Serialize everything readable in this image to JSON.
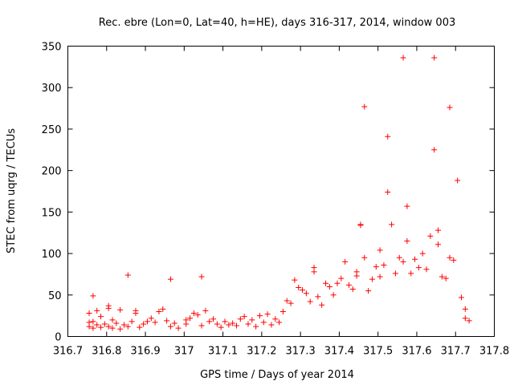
{
  "chart_data": {
    "type": "scatter",
    "title": "Rec. ebre (Lon=0, Lat=40, h=HE), days 316-317, 2014, window 003",
    "xlabel": "GPS time / Days of year 2014",
    "ylabel": "STEC from uqrg / TECUs",
    "xlim": [
      316.7,
      317.8
    ],
    "ylim": [
      0,
      350
    ],
    "xticks": [
      316.7,
      316.8,
      316.9,
      317.0,
      317.1,
      317.2,
      317.3,
      317.4,
      317.5,
      317.6,
      317.7,
      317.8
    ],
    "xtick_labels": [
      "316.7",
      "316.8",
      "316.9",
      "317",
      "317.1",
      "317.2",
      "317.3",
      "317.4",
      "317.5",
      "317.6",
      "317.7",
      "317.8"
    ],
    "yticks": [
      0,
      50,
      100,
      150,
      200,
      250,
      300,
      350
    ],
    "ytick_labels": [
      "0",
      "50",
      "100",
      "150",
      "200",
      "250",
      "300",
      "350"
    ],
    "grid": false,
    "legend": "none",
    "marker": "+",
    "color": "#ff0000",
    "series": [
      {
        "name": "STEC",
        "points": [
          [
            316.755,
            28
          ],
          [
            316.755,
            17
          ],
          [
            316.755,
            12
          ],
          [
            316.765,
            49
          ],
          [
            316.765,
            18
          ],
          [
            316.765,
            10
          ],
          [
            316.775,
            31
          ],
          [
            316.775,
            14
          ],
          [
            316.785,
            24
          ],
          [
            316.785,
            11
          ],
          [
            316.795,
            15
          ],
          [
            316.805,
            37
          ],
          [
            316.805,
            34
          ],
          [
            316.805,
            12
          ],
          [
            316.815,
            20
          ],
          [
            316.815,
            10
          ],
          [
            316.825,
            16
          ],
          [
            316.835,
            32
          ],
          [
            316.835,
            9
          ],
          [
            316.845,
            14
          ],
          [
            316.855,
            74
          ],
          [
            316.855,
            12
          ],
          [
            316.865,
            18
          ],
          [
            316.875,
            31
          ],
          [
            316.875,
            28
          ],
          [
            316.885,
            11
          ],
          [
            316.895,
            15
          ],
          [
            316.905,
            18
          ],
          [
            316.915,
            22
          ],
          [
            316.925,
            17
          ],
          [
            316.935,
            30
          ],
          [
            316.945,
            33
          ],
          [
            316.955,
            19
          ],
          [
            316.965,
            69
          ],
          [
            316.965,
            12
          ],
          [
            316.975,
            16
          ],
          [
            316.985,
            10
          ],
          [
            317.005,
            20
          ],
          [
            317.005,
            15
          ],
          [
            317.015,
            22
          ],
          [
            317.025,
            28
          ],
          [
            317.035,
            26
          ],
          [
            317.045,
            72
          ],
          [
            317.045,
            13
          ],
          [
            317.055,
            31
          ],
          [
            317.065,
            18
          ],
          [
            317.075,
            21
          ],
          [
            317.085,
            15
          ],
          [
            317.095,
            11
          ],
          [
            317.105,
            18
          ],
          [
            317.115,
            14
          ],
          [
            317.125,
            16
          ],
          [
            317.135,
            13
          ],
          [
            317.145,
            21
          ],
          [
            317.155,
            24
          ],
          [
            317.165,
            15
          ],
          [
            317.175,
            20
          ],
          [
            317.185,
            12
          ],
          [
            317.195,
            25
          ],
          [
            317.205,
            17
          ],
          [
            317.215,
            27
          ],
          [
            317.225,
            14
          ],
          [
            317.235,
            21
          ],
          [
            317.245,
            17
          ],
          [
            317.255,
            30
          ],
          [
            317.265,
            43
          ],
          [
            317.275,
            40
          ],
          [
            317.285,
            68
          ],
          [
            317.295,
            59
          ],
          [
            317.305,
            56
          ],
          [
            317.315,
            52
          ],
          [
            317.325,
            42
          ],
          [
            317.335,
            83
          ],
          [
            317.335,
            78
          ],
          [
            317.345,
            48
          ],
          [
            317.355,
            38
          ],
          [
            317.365,
            64
          ],
          [
            317.375,
            60
          ],
          [
            317.385,
            50
          ],
          [
            317.395,
            64
          ],
          [
            317.405,
            70
          ],
          [
            317.415,
            90
          ],
          [
            317.425,
            62
          ],
          [
            317.435,
            57
          ],
          [
            317.445,
            78
          ],
          [
            317.445,
            73
          ],
          [
            317.455,
            135
          ],
          [
            317.455,
            134
          ],
          [
            317.465,
            277
          ],
          [
            317.465,
            95
          ],
          [
            317.475,
            55
          ],
          [
            317.485,
            69
          ],
          [
            317.495,
            84
          ],
          [
            317.505,
            104
          ],
          [
            317.505,
            72
          ],
          [
            317.515,
            86
          ],
          [
            317.525,
            241
          ],
          [
            317.525,
            174
          ],
          [
            317.535,
            135
          ],
          [
            317.545,
            76
          ],
          [
            317.555,
            95
          ],
          [
            317.565,
            336
          ],
          [
            317.565,
            90
          ],
          [
            317.575,
            157
          ],
          [
            317.575,
            115
          ],
          [
            317.585,
            76
          ],
          [
            317.595,
            93
          ],
          [
            317.605,
            83
          ],
          [
            317.615,
            100
          ],
          [
            317.625,
            81
          ],
          [
            317.635,
            121
          ],
          [
            317.645,
            336
          ],
          [
            317.645,
            225
          ],
          [
            317.655,
            128
          ],
          [
            317.655,
            111
          ],
          [
            317.665,
            72
          ],
          [
            317.675,
            70
          ],
          [
            317.685,
            276
          ],
          [
            317.685,
            95
          ],
          [
            317.695,
            92
          ],
          [
            317.705,
            188
          ],
          [
            317.715,
            47
          ],
          [
            317.725,
            33
          ],
          [
            317.725,
            22
          ],
          [
            317.735,
            19
          ]
        ]
      }
    ]
  }
}
